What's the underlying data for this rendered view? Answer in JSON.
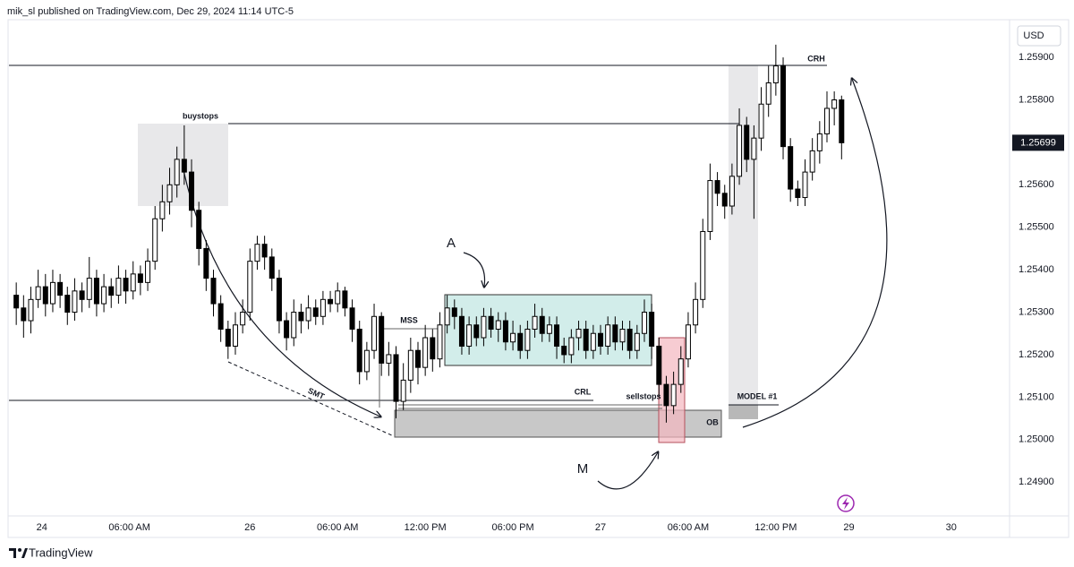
{
  "header": "mik_sl published on TradingView.com, Dec 29, 2024 11:14 UTC-5",
  "brand": "TradingView",
  "chart_data": {
    "type": "candlestick",
    "currency": "USD",
    "up_color": "#ffffff",
    "down_color": "#000000",
    "wick_color": "#000000",
    "grid": false,
    "ylim": [
      1.24816,
      1.25993
    ],
    "yticks": [
      {
        "value": 1.249,
        "label": "1.24900"
      },
      {
        "value": 1.25,
        "label": "1.25000"
      },
      {
        "value": 1.251,
        "label": "1.25100"
      },
      {
        "value": 1.252,
        "label": "1.25200"
      },
      {
        "value": 1.253,
        "label": "1.25300"
      },
      {
        "value": 1.254,
        "label": "1.25400"
      },
      {
        "value": 1.255,
        "label": "1.25500"
      },
      {
        "value": 1.256,
        "label": "1.25600"
      },
      {
        "value": 1.257,
        "label": "1.25700"
      },
      {
        "value": 1.258,
        "label": "1.25800"
      },
      {
        "value": 1.259,
        "label": "1.25900"
      }
    ],
    "xlim": [
      -1,
      136
    ],
    "xticks": [
      {
        "value": 3.5,
        "label": "24"
      },
      {
        "value": 15.5,
        "label": "06:00 AM"
      },
      {
        "value": 32,
        "label": "26"
      },
      {
        "value": 44,
        "label": "06:00 AM"
      },
      {
        "value": 56,
        "label": "12:00 PM"
      },
      {
        "value": 68,
        "label": "06:00 PM"
      },
      {
        "value": 80,
        "label": "27"
      },
      {
        "value": 92,
        "label": "06:00 AM"
      },
      {
        "value": 104,
        "label": "12:00 PM"
      },
      {
        "value": 114,
        "label": "29"
      },
      {
        "value": 128,
        "label": "30"
      }
    ],
    "annotations": [
      "buystops",
      "CRH",
      "MSS",
      "CRL",
      "sellstops",
      "MODEL #1",
      "OB",
      "SMT",
      "A",
      "M"
    ],
    "candles": [
      [
        1.2534,
        1.2537,
        1.2527,
        1.2531
      ],
      [
        1.2531,
        1.2534,
        1.2524,
        1.2528
      ],
      [
        1.2528,
        1.2536,
        1.2525,
        1.2533
      ],
      [
        1.2533,
        1.254,
        1.2531,
        1.2536
      ],
      [
        1.2536,
        1.2539,
        1.2529,
        1.2532
      ],
      [
        1.2532,
        1.254,
        1.253,
        1.2537
      ],
      [
        1.2537,
        1.2539,
        1.2531,
        1.2534
      ],
      [
        1.2534,
        1.2536,
        1.2527,
        1.253
      ],
      [
        1.253,
        1.2538,
        1.2528,
        1.2535
      ],
      [
        1.2535,
        1.2537,
        1.253,
        1.2533
      ],
      [
        1.2533,
        1.2543,
        1.2531,
        1.2538
      ],
      [
        1.2538,
        1.254,
        1.2529,
        1.2532
      ],
      [
        1.2532,
        1.2539,
        1.253,
        1.2536
      ],
      [
        1.2536,
        1.2538,
        1.2531,
        1.2534
      ],
      [
        1.2534,
        1.2541,
        1.2532,
        1.2538
      ],
      [
        1.2538,
        1.254,
        1.2532,
        1.2535
      ],
      [
        1.2535,
        1.2542,
        1.2533,
        1.2539
      ],
      [
        1.2539,
        1.2541,
        1.2534,
        1.2537
      ],
      [
        1.2537,
        1.2545,
        1.2535,
        1.2542
      ],
      [
        1.2542,
        1.2555,
        1.254,
        1.2552
      ],
      [
        1.2552,
        1.256,
        1.2549,
        1.2556
      ],
      [
        1.2556,
        1.2564,
        1.2553,
        1.256
      ],
      [
        1.256,
        1.2569,
        1.2557,
        1.2566
      ],
      [
        1.2566,
        1.2574,
        1.256,
        1.2563
      ],
      [
        1.2563,
        1.2566,
        1.255,
        1.2554
      ],
      [
        1.2554,
        1.2556,
        1.2541,
        1.2545
      ],
      [
        1.2545,
        1.2547,
        1.2535,
        1.2538
      ],
      [
        1.2538,
        1.254,
        1.2529,
        1.2532
      ],
      [
        1.2532,
        1.2534,
        1.2523,
        1.2526
      ],
      [
        1.2526,
        1.2528,
        1.2519,
        1.2522
      ],
      [
        1.2522,
        1.253,
        1.252,
        1.2527
      ],
      [
        1.2527,
        1.2533,
        1.2525,
        1.253
      ],
      [
        1.253,
        1.2545,
        1.2528,
        1.2542
      ],
      [
        1.2542,
        1.2548,
        1.254,
        1.2546
      ],
      [
        1.2546,
        1.2548,
        1.254,
        1.2543
      ],
      [
        1.2543,
        1.2545,
        1.2535,
        1.2538
      ],
      [
        1.2538,
        1.254,
        1.2525,
        1.2528
      ],
      [
        1.2528,
        1.253,
        1.2521,
        1.2524
      ],
      [
        1.2524,
        1.2533,
        1.2522,
        1.253
      ],
      [
        1.253,
        1.2532,
        1.2525,
        1.2528
      ],
      [
        1.2528,
        1.2534,
        1.2526,
        1.2531
      ],
      [
        1.2531,
        1.2533,
        1.2527,
        1.2529
      ],
      [
        1.2529,
        1.2535,
        1.2527,
        1.2533
      ],
      [
        1.2533,
        1.2535,
        1.253,
        1.2532
      ],
      [
        1.2532,
        1.2537,
        1.253,
        1.2535
      ],
      [
        1.2535,
        1.2536,
        1.2529,
        1.2531
      ],
      [
        1.2531,
        1.2533,
        1.2523,
        1.2526
      ],
      [
        1.2526,
        1.2528,
        1.2513,
        1.2516
      ],
      [
        1.2516,
        1.2523,
        1.2514,
        1.2521
      ],
      [
        1.2521,
        1.2532,
        1.2519,
        1.2529
      ],
      [
        1.2529,
        1.253,
        1.2515,
        1.2518
      ],
      [
        1.2518,
        1.2523,
        1.2515,
        1.252
      ],
      [
        1.252,
        1.2522,
        1.2505,
        1.2509
      ],
      [
        1.2509,
        1.2518,
        1.2507,
        1.2514
      ],
      [
        1.2514,
        1.2524,
        1.2511,
        1.2521
      ],
      [
        1.2521,
        1.2523,
        1.2513,
        1.2517
      ],
      [
        1.2517,
        1.2527,
        1.2515,
        1.2524
      ],
      [
        1.2524,
        1.2526,
        1.2516,
        1.2519
      ],
      [
        1.2519,
        1.253,
        1.2517,
        1.2527
      ],
      [
        1.2527,
        1.2534,
        1.2525,
        1.2531
      ],
      [
        1.2531,
        1.2533,
        1.2526,
        1.2529
      ],
      [
        1.2529,
        1.2531,
        1.252,
        1.2522
      ],
      [
        1.2522,
        1.2529,
        1.252,
        1.2527
      ],
      [
        1.2527,
        1.2529,
        1.2522,
        1.2524
      ],
      [
        1.2524,
        1.2531,
        1.2522,
        1.2529
      ],
      [
        1.2529,
        1.2531,
        1.2524,
        1.2526
      ],
      [
        1.2526,
        1.253,
        1.2523,
        1.2528
      ],
      [
        1.2528,
        1.253,
        1.2521,
        1.2523
      ],
      [
        1.2523,
        1.2528,
        1.2521,
        1.2525
      ],
      [
        1.2525,
        1.2527,
        1.2519,
        1.2521
      ],
      [
        1.2521,
        1.2528,
        1.2519,
        1.2526
      ],
      [
        1.2526,
        1.2532,
        1.2524,
        1.2529
      ],
      [
        1.2529,
        1.2531,
        1.2523,
        1.2525
      ],
      [
        1.2525,
        1.2529,
        1.2523,
        1.2527
      ],
      [
        1.2527,
        1.2529,
        1.2519,
        1.2522
      ],
      [
        1.2522,
        1.2524,
        1.2518,
        1.252
      ],
      [
        1.252,
        1.2526,
        1.2518,
        1.2524
      ],
      [
        1.2524,
        1.2528,
        1.2521,
        1.2526
      ],
      [
        1.2526,
        1.2528,
        1.2519,
        1.2521
      ],
      [
        1.2521,
        1.2527,
        1.2519,
        1.2525
      ],
      [
        1.2525,
        1.2527,
        1.252,
        1.2522
      ],
      [
        1.2522,
        1.2529,
        1.252,
        1.2527
      ],
      [
        1.2527,
        1.2529,
        1.2521,
        1.2523
      ],
      [
        1.2523,
        1.2528,
        1.2521,
        1.2526
      ],
      [
        1.2526,
        1.2528,
        1.2519,
        1.2521
      ],
      [
        1.2521,
        1.2527,
        1.2519,
        1.2525
      ],
      [
        1.2525,
        1.2533,
        1.2523,
        1.253
      ],
      [
        1.253,
        1.2532,
        1.2519,
        1.2522
      ],
      [
        1.2522,
        1.2524,
        1.251,
        1.2513
      ],
      [
        1.2513,
        1.2515,
        1.2504,
        1.2508
      ],
      [
        1.2508,
        1.2516,
        1.2506,
        1.2513
      ],
      [
        1.2513,
        1.2522,
        1.2511,
        1.2519
      ],
      [
        1.2519,
        1.253,
        1.2517,
        1.2527
      ],
      [
        1.2527,
        1.2537,
        1.2525,
        1.2533
      ],
      [
        1.2533,
        1.2552,
        1.2531,
        1.2549
      ],
      [
        1.2549,
        1.2565,
        1.2547,
        1.2561
      ],
      [
        1.2561,
        1.2563,
        1.2555,
        1.2558
      ],
      [
        1.2558,
        1.256,
        1.2552,
        1.2555
      ],
      [
        1.2555,
        1.2565,
        1.2553,
        1.2562
      ],
      [
        1.2562,
        1.2578,
        1.256,
        1.2574
      ],
      [
        1.2574,
        1.2576,
        1.2563,
        1.2566
      ],
      [
        1.2566,
        1.2574,
        1.2552,
        1.2571
      ],
      [
        1.2571,
        1.2583,
        1.2568,
        1.2579
      ],
      [
        1.2579,
        1.2588,
        1.2576,
        1.2584
      ],
      [
        1.2584,
        1.2593,
        1.2581,
        1.2588
      ],
      [
        1.2588,
        1.259,
        1.2566,
        1.2569
      ],
      [
        1.2569,
        1.2571,
        1.2556,
        1.2559
      ],
      [
        1.2559,
        1.2561,
        1.2555,
        1.2557
      ],
      [
        1.2557,
        1.2566,
        1.2555,
        1.2563
      ],
      [
        1.2563,
        1.2571,
        1.2561,
        1.2568
      ],
      [
        1.2568,
        1.2575,
        1.2565,
        1.2572
      ],
      [
        1.2572,
        1.2582,
        1.257,
        1.2578
      ],
      [
        1.2578,
        1.2582,
        1.2574,
        1.258
      ],
      [
        1.258,
        1.2581,
        1.2566,
        1.25699
      ]
    ]
  }
}
